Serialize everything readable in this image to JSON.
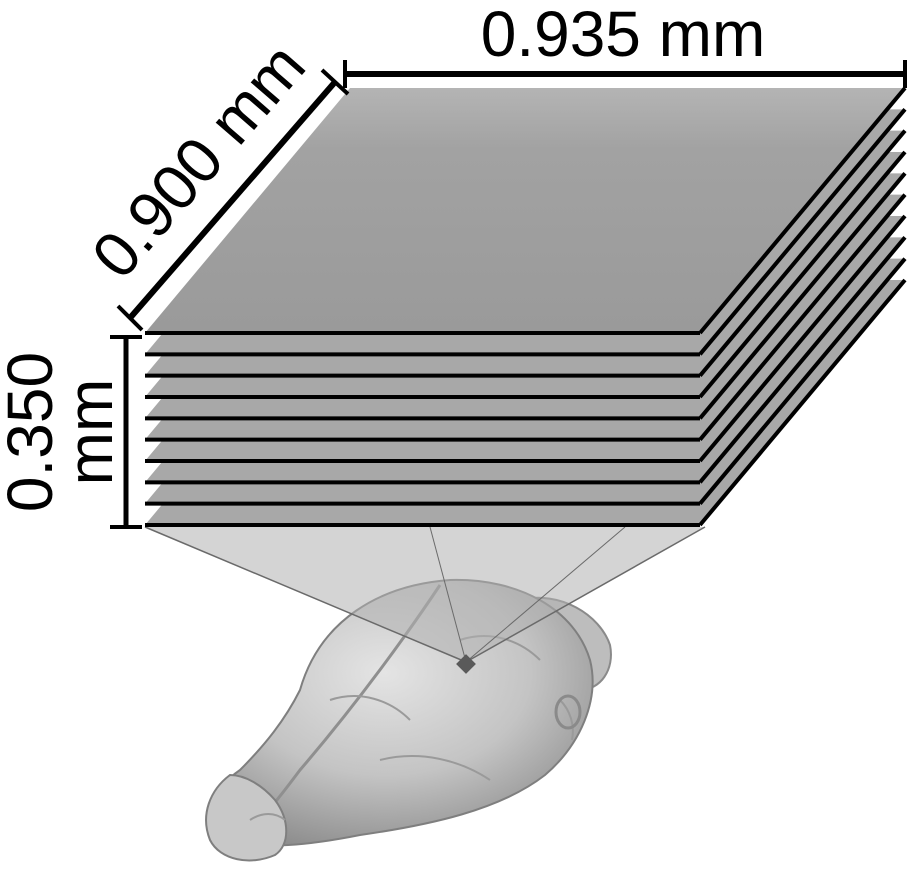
{
  "dimensions": {
    "width_label": "0.935 mm",
    "depth_label": "0.900 mm",
    "height_value": "0.350",
    "height_unit": "mm"
  },
  "stack": {
    "slice_count": 10
  },
  "colors": {
    "slice_fill_top": "#9b9b9b",
    "slice_fill_edge": "#a8a8a8",
    "slice_outline": "#000000",
    "projection_fill": "#b5b5b5",
    "brain_fill": "#c9c9c9",
    "brain_shadow": "#8a8a8a",
    "marker": "#5f5f5f"
  }
}
